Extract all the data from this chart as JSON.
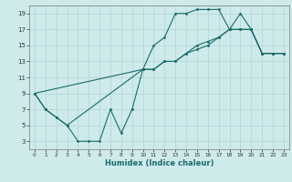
{
  "xlabel": "Humidex (Indice chaleur)",
  "bg_color": "#ceeaeb",
  "grid_color": "#b8d8d9",
  "line_color": "#1a6b6b",
  "xlim": [
    -0.5,
    23.5
  ],
  "ylim": [
    2,
    20
  ],
  "xticks": [
    0,
    1,
    2,
    3,
    4,
    5,
    6,
    7,
    8,
    9,
    10,
    11,
    12,
    13,
    14,
    15,
    16,
    17,
    18,
    19,
    20,
    21,
    22,
    23
  ],
  "yticks": [
    3,
    5,
    7,
    9,
    11,
    13,
    15,
    17,
    19
  ],
  "line1_x": [
    0,
    1,
    2,
    3,
    4,
    5,
    6,
    7,
    8,
    9,
    10,
    11,
    12,
    13,
    14,
    15,
    16,
    17,
    18,
    19,
    20,
    21,
    22,
    23
  ],
  "line1_y": [
    9,
    7,
    6,
    5,
    3,
    3,
    3,
    7,
    4,
    7,
    12,
    15,
    16,
    19,
    19,
    19.5,
    19.5,
    19.5,
    17,
    19,
    17,
    14,
    14,
    14
  ],
  "line2_x": [
    0,
    1,
    2,
    3,
    10,
    11,
    12,
    13,
    14,
    15,
    16,
    17,
    18,
    19,
    20,
    21,
    22,
    23
  ],
  "line2_y": [
    9,
    7,
    6,
    5,
    12,
    12,
    13,
    13,
    14,
    15,
    15.5,
    16,
    17,
    17,
    17,
    14,
    14,
    14
  ],
  "line3_x": [
    0,
    10,
    11,
    12,
    13,
    14,
    15,
    16,
    17,
    18,
    19,
    20,
    21,
    22,
    23
  ],
  "line3_y": [
    9,
    12,
    12,
    13,
    13,
    14,
    14.5,
    15,
    16,
    17,
    17,
    17,
    14,
    14,
    14
  ]
}
